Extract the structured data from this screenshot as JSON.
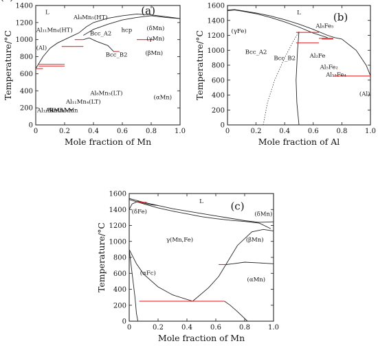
{
  "chart_data": [
    {
      "type": "line",
      "panel": "(a)",
      "xlabel": "Mole fraction of Mn",
      "ylabel": "Temperature/°C",
      "xlim": [
        0,
        1
      ],
      "ylim": [
        0,
        1400
      ],
      "xticks": [
        0,
        0.2,
        0.4,
        0.6,
        0.8,
        1.0
      ],
      "xtick_labels": [
        "0",
        "0.2",
        "0.4",
        "0.6",
        "0.8",
        "1.0"
      ],
      "yticks": [
        0,
        200,
        400,
        600,
        800,
        1000,
        1200,
        1400
      ],
      "phase_labels": [
        {
          "text": "L",
          "x": 0.08,
          "y": 1300
        },
        {
          "text": "Al₈Mn₅(HT)",
          "x": 0.38,
          "y": 1240
        },
        {
          "text": "Al₁₁Mn₄(HT)",
          "x": 0.13,
          "y": 1090
        },
        {
          "text": "Bcc_A2",
          "x": 0.45,
          "y": 1050
        },
        {
          "text": "hcp",
          "x": 0.63,
          "y": 1090
        },
        {
          "text": "(δMn)",
          "x": 0.83,
          "y": 1110
        },
        {
          "text": "(γMn)",
          "x": 0.83,
          "y": 990
        },
        {
          "text": "(Al)",
          "x": 0.04,
          "y": 880
        },
        {
          "text": "Bcc_B2",
          "x": 0.56,
          "y": 800
        },
        {
          "text": "(βMn)",
          "x": 0.82,
          "y": 820
        },
        {
          "text": "Al₁₂Mn",
          "x": 0.08,
          "y": 150
        },
        {
          "text": "Al₆Mn",
          "x": 0.13,
          "y": 150
        },
        {
          "text": "R-Al₄Mn",
          "x": 0.18,
          "y": 150
        },
        {
          "text": "Al₄Mn",
          "x": 0.23,
          "y": 150
        },
        {
          "text": "Al₁₁Mn₄(LT)",
          "x": 0.33,
          "y": 250
        },
        {
          "text": "Al₈Mn₅(LT)",
          "x": 0.49,
          "y": 350
        },
        {
          "text": "(αMn)",
          "x": 0.88,
          "y": 300
        }
      ],
      "series": [
        {
          "x": [
            0.0,
            0.05,
            0.1,
            0.15,
            0.2,
            0.25,
            0.3,
            0.35,
            0.4,
            0.5,
            0.6,
            0.7,
            0.8,
            0.9,
            1.0
          ],
          "y": [
            660,
            800,
            900,
            960,
            1000,
            1040,
            1080,
            1150,
            1200,
            1250,
            1280,
            1300,
            1290,
            1270,
            1246
          ]
        },
        {
          "x": [
            0.33,
            0.4,
            0.5,
            0.6,
            0.7,
            0.8,
            0.9,
            1.0
          ],
          "y": [
            1050,
            1120,
            1180,
            1230,
            1260,
            1280,
            1260,
            1246
          ]
        },
        {
          "x": [
            0.33,
            0.37,
            0.42,
            0.5,
            0.54
          ],
          "y": [
            1000,
            1020,
            980,
            930,
            860
          ]
        }
      ],
      "tie_lines": [
        {
          "x": [
            0.02,
            0.2
          ],
          "y": [
            710,
            710
          ]
        },
        {
          "x": [
            0.02,
            0.2
          ],
          "y": [
            690,
            690
          ]
        },
        {
          "x": [
            0.0,
            0.05
          ],
          "y": [
            660,
            660
          ]
        },
        {
          "x": [
            0.18,
            0.27
          ],
          "y": [
            920,
            920
          ]
        },
        {
          "x": [
            0.27,
            0.33
          ],
          "y": [
            1000,
            1000
          ]
        },
        {
          "x": [
            0.27,
            0.33
          ],
          "y": [
            920,
            920
          ]
        },
        {
          "x": [
            0.54,
            0.58
          ],
          "y": [
            860,
            860
          ]
        },
        {
          "x": [
            0.7,
            0.82
          ],
          "y": [
            1000,
            1000
          ]
        }
      ]
    },
    {
      "type": "line",
      "panel": "(b)",
      "xlabel": "Mole fraction of Al",
      "ylabel": "Temperature/°C",
      "xlim": [
        0,
        1
      ],
      "ylim": [
        0,
        1600
      ],
      "xticks": [
        0,
        0.2,
        0.4,
        0.6,
        0.8,
        1.0
      ],
      "xtick_labels": [
        "0",
        "0.2",
        "0.4",
        "0.6",
        "0.8",
        "1.0"
      ],
      "yticks": [
        0,
        200,
        400,
        600,
        800,
        1000,
        1200,
        1400,
        1600
      ],
      "phase_labels": [
        {
          "text": "L",
          "x": 0.5,
          "y": 1480
        },
        {
          "text": "(γFe)",
          "x": 0.08,
          "y": 1230
        },
        {
          "text": "Al₈Fe₅",
          "x": 0.68,
          "y": 1300
        },
        {
          "text": "Bcc_A2",
          "x": 0.2,
          "y": 950
        },
        {
          "text": "Bcc_B2",
          "x": 0.4,
          "y": 870
        },
        {
          "text": "Al₂Fe",
          "x": 0.63,
          "y": 900
        },
        {
          "text": "Al₅Fe₂",
          "x": 0.71,
          "y": 750
        },
        {
          "text": "Al₁₃Fe₄",
          "x": 0.76,
          "y": 650
        },
        {
          "text": "(Al)",
          "x": 0.96,
          "y": 390
        }
      ],
      "series": [
        {
          "x": [
            0.0,
            0.05,
            0.1,
            0.2,
            0.3,
            0.4,
            0.5,
            0.6,
            0.7,
            0.75,
            0.8,
            0.9,
            0.97,
            1.0
          ],
          "y": [
            1538,
            1545,
            1530,
            1500,
            1460,
            1410,
            1350,
            1280,
            1200,
            1170,
            1150,
            1000,
            800,
            660
          ]
        },
        {
          "x": [
            0.0,
            0.05,
            0.1,
            0.2,
            0.3,
            0.4,
            0.5,
            0.6,
            0.7
          ],
          "y": [
            1530,
            1540,
            1525,
            1490,
            1440,
            1380,
            1310,
            1230,
            1170
          ]
        },
        {
          "x": [
            0.5,
            0.49,
            0.48,
            0.485,
            0.5
          ],
          "y": [
            1250,
            1000,
            600,
            300,
            0
          ]
        }
      ],
      "tie_lines": [
        {
          "x": [
            0.48,
            0.64
          ],
          "y": [
            1240,
            1240
          ]
        },
        {
          "x": [
            0.48,
            0.64
          ],
          "y": [
            1100,
            1100
          ]
        },
        {
          "x": [
            0.64,
            0.74
          ],
          "y": [
            1160,
            1160
          ]
        },
        {
          "x": [
            0.66,
            0.74
          ],
          "y": [
            1150,
            1150
          ]
        },
        {
          "x": [
            0.74,
            1.0
          ],
          "y": [
            655,
            655
          ]
        }
      ]
    },
    {
      "type": "line",
      "panel": "(c)",
      "xlabel": "Mole fraction of Mn",
      "ylabel": "Temperature/°C",
      "xlim": [
        0,
        1
      ],
      "ylim": [
        0,
        1600
      ],
      "xticks": [
        0,
        0.2,
        0.4,
        0.6,
        0.8,
        1.0
      ],
      "xtick_labels": [
        "0",
        "0.2",
        "0.4",
        "0.6",
        "0.8",
        "1.0"
      ],
      "yticks": [
        0,
        200,
        400,
        600,
        800,
        1000,
        1200,
        1400,
        1600
      ],
      "phase_labels": [
        {
          "text": "L",
          "x": 0.5,
          "y": 1480
        },
        {
          "text": "(δFe)",
          "x": 0.07,
          "y": 1350
        },
        {
          "text": "(δMn)",
          "x": 0.93,
          "y": 1320
        },
        {
          "text": "(c)",
          "x": 0.75,
          "y": 1400
        },
        {
          "text": "γ(Mn,Fe)",
          "x": 0.35,
          "y": 1000
        },
        {
          "text": "(βMn)",
          "x": 0.87,
          "y": 1000
        },
        {
          "text": "(αFc)",
          "x": 0.13,
          "y": 580
        },
        {
          "text": "(αMn)",
          "x": 0.88,
          "y": 500
        }
      ],
      "series": [
        {
          "x": [
            0.0,
            0.1,
            0.2,
            0.3,
            0.4,
            0.5,
            0.6,
            0.7,
            0.8,
            0.9,
            1.0
          ],
          "y": [
            1538,
            1490,
            1450,
            1410,
            1380,
            1350,
            1320,
            1290,
            1260,
            1240,
            1246
          ]
        },
        {
          "x": [
            0.0,
            0.1,
            0.2,
            0.3,
            0.4,
            0.5,
            0.6,
            0.7,
            0.8,
            0.9,
            0.98
          ],
          "y": [
            1525,
            1470,
            1420,
            1380,
            1345,
            1310,
            1285,
            1265,
            1250,
            1230,
            1160
          ]
        },
        {
          "x": [
            0.0,
            0.02,
            0.06,
            0.1,
            0.15,
            0.2
          ],
          "y": [
            1400,
            1470,
            1500,
            1480,
            1460,
            1450
          ]
        },
        {
          "x": [
            0.44,
            0.55,
            0.62,
            0.67,
            0.75,
            0.85,
            0.93,
            1.0
          ],
          "y": [
            250,
            420,
            560,
            710,
            950,
            1120,
            1150,
            1130
          ]
        },
        {
          "x": [
            0.67,
            0.72,
            0.8,
            0.9,
            1.0
          ],
          "y": [
            710,
            720,
            740,
            730,
            720
          ]
        },
        {
          "x": [
            0.0,
            0.05,
            0.1,
            0.2,
            0.3,
            0.44
          ],
          "y": [
            900,
            720,
            590,
            430,
            330,
            250
          ]
        },
        {
          "x": [
            0.0,
            0.02,
            0.04,
            0.05,
            0.06
          ],
          "y": [
            900,
            600,
            300,
            100,
            0
          ]
        },
        {
          "x": [
            0.66,
            0.7,
            0.75,
            0.82
          ],
          "y": [
            250,
            200,
            120,
            0
          ]
        }
      ],
      "tie_lines": [
        {
          "x": [
            0.07,
            0.66
          ],
          "y": [
            250,
            250
          ]
        },
        {
          "x": [
            0.62,
            0.67
          ],
          "y": [
            710,
            710
          ]
        },
        {
          "x": [
            0.06,
            0.12
          ],
          "y": [
            1490,
            1490
          ]
        }
      ]
    }
  ]
}
